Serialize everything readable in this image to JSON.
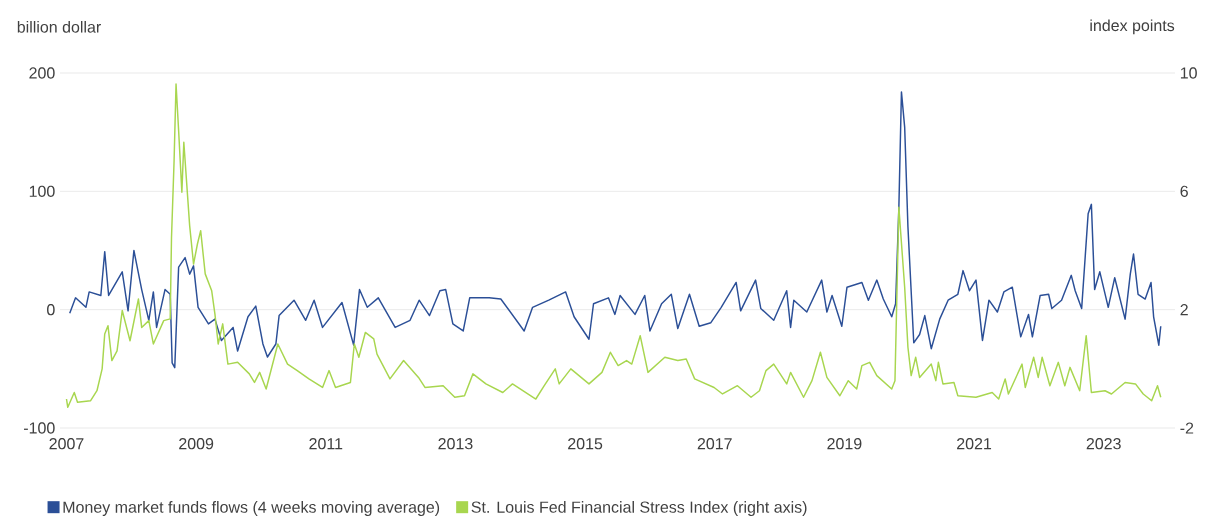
{
  "chart_data": {
    "type": "line",
    "ylabel": "billion dollar",
    "y2label": "index points",
    "xlim": [
      2006.9,
      2024.1
    ],
    "xticks": [
      2007,
      2009,
      2011,
      2013,
      2015,
      2017,
      2019,
      2021,
      2023
    ],
    "ylim": [
      -100,
      200
    ],
    "yticks": [
      -100,
      0,
      100,
      200
    ],
    "y2lim": [
      -2,
      10
    ],
    "y2ticks": [
      -2,
      2,
      6,
      10
    ],
    "grid": "y",
    "legend": "bottom",
    "series": [
      {
        "name": "Money market funds flows (4 weeks moving average)",
        "color": "#2b4f97",
        "axis": "y",
        "x": [
          2007.05,
          2007.14,
          2007.3,
          2007.35,
          2007.53,
          2007.59,
          2007.65,
          2007.86,
          2007.95,
          2008.04,
          2008.16,
          2008.27,
          2008.34,
          2008.39,
          2008.52,
          2008.6,
          2008.63,
          2008.67,
          2008.73,
          2008.83,
          2008.9,
          2008.96,
          2009.03,
          2009.19,
          2009.29,
          2009.39,
          2009.57,
          2009.64,
          2009.8,
          2009.92,
          2010.03,
          2010.1,
          2010.23,
          2010.28,
          2010.51,
          2010.69,
          2010.82,
          2010.95,
          2011.25,
          2011.43,
          2011.52,
          2011.64,
          2011.81,
          2012.07,
          2012.3,
          2012.44,
          2012.6,
          2012.76,
          2012.85,
          2012.96,
          2013.12,
          2013.22,
          2013.52,
          2013.7,
          2014.06,
          2014.19,
          2014.44,
          2014.7,
          2014.83,
          2015.06,
          2015.13,
          2015.36,
          2015.46,
          2015.54,
          2015.77,
          2015.92,
          2016.0,
          2016.18,
          2016.33,
          2016.43,
          2016.61,
          2016.76,
          2016.94,
          2017.1,
          2017.33,
          2017.4,
          2017.63,
          2017.71,
          2017.91,
          2018.11,
          2018.17,
          2018.22,
          2018.42,
          2018.65,
          2018.73,
          2018.81,
          2018.96,
          2019.04,
          2019.27,
          2019.37,
          2019.5,
          2019.6,
          2019.73,
          2019.79,
          2019.84,
          2019.88,
          2019.93,
          2019.98,
          2020.07,
          2020.16,
          2020.24,
          2020.34,
          2020.47,
          2020.6,
          2020.75,
          2020.83,
          2020.93,
          2021.03,
          2021.13,
          2021.23,
          2021.36,
          2021.46,
          2021.59,
          2021.72,
          2021.84,
          2021.9,
          2022.02,
          2022.15,
          2022.2,
          2022.35,
          2022.5,
          2022.56,
          2022.66,
          2022.76,
          2022.81,
          2022.86,
          2022.94,
          2023.07,
          2023.17,
          2023.33,
          2023.41,
          2023.46,
          2023.53,
          2023.64,
          2023.73,
          2023.77,
          2023.85,
          2023.88
        ],
        "values": [
          -3,
          10,
          2,
          15,
          12,
          49,
          12,
          32,
          -1,
          50,
          17,
          -9,
          15,
          -15,
          17,
          13,
          -45,
          -49,
          36,
          44,
          30,
          37,
          2,
          -12,
          -8,
          -26,
          -15,
          -35,
          -6,
          3,
          -29,
          -40,
          -29,
          -5,
          8,
          -9,
          8,
          -15,
          6,
          -30,
          17,
          2,
          10,
          -15,
          -9,
          8,
          -5,
          16,
          17,
          -12,
          -18,
          10,
          10,
          9,
          -18,
          2,
          8,
          15,
          -6,
          -25,
          5,
          10,
          -4,
          12,
          -4,
          12,
          -18,
          5,
          13,
          -16,
          13,
          -14,
          -11,
          2,
          23,
          -1,
          25,
          1,
          -9,
          16,
          -15,
          8,
          -2,
          25,
          -2,
          12,
          -14,
          19,
          23,
          8,
          25,
          9,
          -6,
          5,
          86,
          184,
          154,
          70,
          -28,
          -21,
          -5,
          -33,
          -8,
          8,
          13,
          33,
          16,
          25,
          -26,
          8,
          -2,
          15,
          19,
          -23,
          -4,
          -23,
          12,
          13,
          1,
          8,
          29,
          16,
          1,
          81,
          89,
          17,
          32,
          2,
          27,
          -8,
          30,
          47,
          13,
          9,
          23,
          -6,
          -30,
          -14
        ]
      },
      {
        "name": "St. Louis Fed Financial Stress Index (right axis)",
        "color": "#a8d64f",
        "axis": "y2",
        "x": [
          2007.0,
          2007.02,
          2007.12,
          2007.17,
          2007.37,
          2007.47,
          2007.55,
          2007.59,
          2007.64,
          2007.7,
          2007.78,
          2007.86,
          2007.98,
          2008.11,
          2008.16,
          2008.27,
          2008.34,
          2008.5,
          2008.6,
          2008.62,
          2008.66,
          2008.69,
          2008.73,
          2008.78,
          2008.81,
          2008.9,
          2008.96,
          2009.02,
          2009.07,
          2009.14,
          2009.24,
          2009.29,
          2009.34,
          2009.41,
          2009.49,
          2009.64,
          2009.82,
          2009.9,
          2009.98,
          2010.08,
          2010.26,
          2010.41,
          2010.56,
          2010.74,
          2010.95,
          2011.05,
          2011.15,
          2011.38,
          2011.44,
          2011.51,
          2011.61,
          2011.74,
          2011.79,
          2011.99,
          2012.2,
          2012.43,
          2012.53,
          2012.81,
          2012.99,
          2013.14,
          2013.27,
          2013.47,
          2013.73,
          2013.88,
          2014.24,
          2014.37,
          2014.54,
          2014.6,
          2014.78,
          2015.06,
          2015.26,
          2015.39,
          2015.51,
          2015.64,
          2015.72,
          2015.85,
          2015.97,
          2016.23,
          2016.43,
          2016.56,
          2016.69,
          2016.99,
          2017.12,
          2017.35,
          2017.56,
          2017.69,
          2017.79,
          2017.91,
          2018.11,
          2018.17,
          2018.37,
          2018.5,
          2018.63,
          2018.73,
          2018.93,
          2019.06,
          2019.19,
          2019.27,
          2019.39,
          2019.5,
          2019.73,
          2019.78,
          2019.84,
          2019.93,
          2019.98,
          2020.03,
          2020.1,
          2020.16,
          2020.34,
          2020.41,
          2020.45,
          2020.52,
          2020.69,
          2020.75,
          2021.03,
          2021.28,
          2021.38,
          2021.48,
          2021.53,
          2021.74,
          2021.79,
          2021.92,
          2021.99,
          2022.05,
          2022.17,
          2022.3,
          2022.4,
          2022.48,
          2022.63,
          2022.73,
          2022.81,
          2023.02,
          2023.12,
          2023.33,
          2023.49,
          2023.61,
          2023.74,
          2023.83,
          2023.88
        ],
        "values": [
          -1.02,
          -1.3,
          -0.8,
          -1.13,
          -1.08,
          -0.74,
          0.0,
          1.18,
          1.46,
          0.28,
          0.61,
          1.97,
          0.95,
          2.36,
          1.4,
          1.63,
          0.84,
          1.63,
          1.69,
          4.44,
          7.04,
          9.63,
          8.05,
          5.97,
          7.66,
          4.84,
          3.54,
          4.22,
          4.67,
          3.21,
          2.64,
          1.85,
          0.84,
          1.52,
          0.16,
          0.22,
          -0.17,
          -0.46,
          -0.12,
          -0.68,
          0.84,
          0.16,
          -0.06,
          -0.34,
          -0.63,
          -0.06,
          -0.63,
          -0.46,
          0.84,
          0.39,
          1.23,
          1.01,
          0.5,
          -0.34,
          0.28,
          -0.29,
          -0.63,
          -0.57,
          -0.96,
          -0.91,
          -0.17,
          -0.51,
          -0.8,
          -0.51,
          -1.02,
          -0.57,
          0.0,
          -0.51,
          0.0,
          -0.51,
          -0.12,
          0.56,
          0.11,
          0.28,
          0.16,
          1.12,
          -0.12,
          0.39,
          0.28,
          0.33,
          -0.34,
          -0.63,
          -0.85,
          -0.57,
          -0.96,
          -0.74,
          -0.06,
          0.16,
          -0.51,
          -0.12,
          -0.96,
          -0.4,
          0.56,
          -0.29,
          -0.91,
          -0.4,
          -0.68,
          0.11,
          0.22,
          -0.23,
          -0.68,
          -0.4,
          5.46,
          2.75,
          0.73,
          -0.23,
          0.39,
          -0.29,
          0.16,
          -0.4,
          0.22,
          -0.51,
          -0.46,
          -0.91,
          -0.96,
          -0.8,
          -1.02,
          -0.34,
          -0.85,
          0.16,
          -0.63,
          0.39,
          -0.29,
          0.39,
          -0.57,
          0.22,
          -0.57,
          0.05,
          -0.74,
          1.12,
          -0.8,
          -0.74,
          -0.85,
          -0.46,
          -0.51,
          -0.85,
          -1.08,
          -0.57,
          -0.96
        ]
      }
    ]
  }
}
